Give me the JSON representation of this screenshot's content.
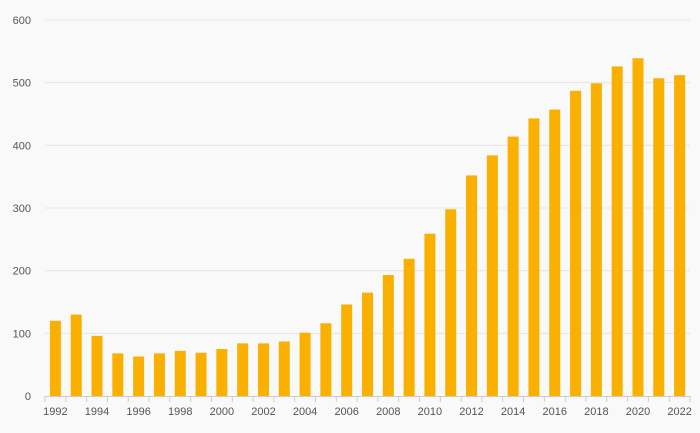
{
  "chart_data": {
    "type": "bar",
    "title": "",
    "xlabel": "",
    "ylabel": "",
    "ylim": [
      0,
      600
    ],
    "y_ticks": [
      0,
      100,
      200,
      300,
      400,
      500,
      600
    ],
    "grid": true,
    "legend": "none",
    "bar_color": "#f9b000",
    "categories": [
      "1992",
      "1993",
      "1994",
      "1995",
      "1996",
      "1997",
      "1998",
      "1999",
      "2000",
      "2001",
      "2002",
      "2003",
      "2004",
      "2005",
      "2006",
      "2007",
      "2008",
      "2009",
      "2010",
      "2011",
      "2012",
      "2013",
      "2014",
      "2015",
      "2016",
      "2017",
      "2018",
      "2019",
      "2020",
      "2021",
      "2022"
    ],
    "x_tick_labels": [
      "1992",
      "1994",
      "1996",
      "1998",
      "2000",
      "2002",
      "2004",
      "2006",
      "2008",
      "2010",
      "2012",
      "2014",
      "2016",
      "2018",
      "2020",
      "2022"
    ],
    "values": [
      120,
      130,
      96,
      68,
      63,
      68,
      72,
      69,
      75,
      84,
      84,
      87,
      101,
      116,
      146,
      165,
      193,
      219,
      259,
      298,
      352,
      384,
      414,
      443,
      457,
      487,
      499,
      526,
      539,
      507,
      512
    ]
  }
}
